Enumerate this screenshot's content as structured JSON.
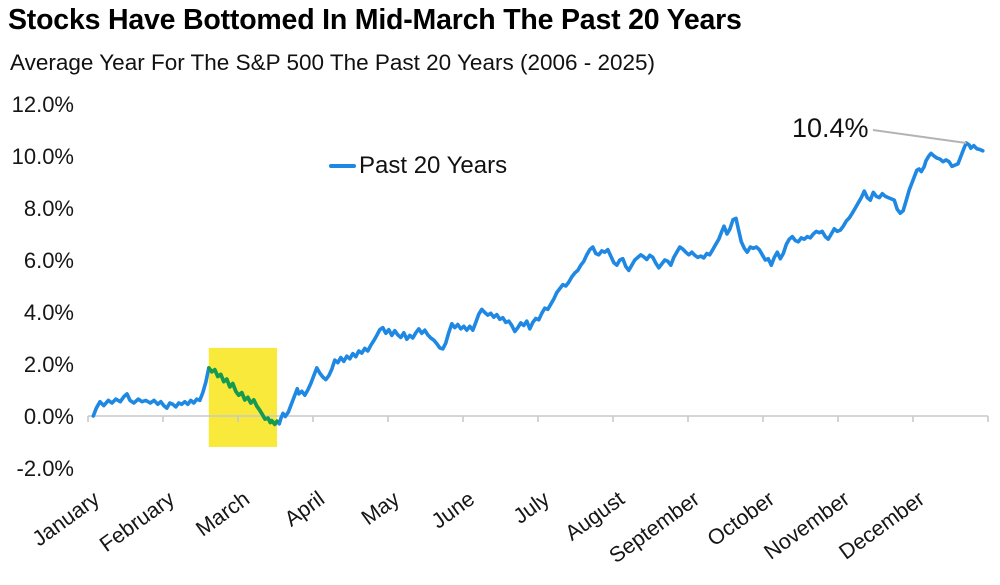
{
  "header": {
    "title": "Stocks Have Bottomed In Mid-March The Past 20 Years",
    "subtitle": "Average Year For The S&P 500 The Past 20 Years (2006 - 2025)"
  },
  "legend": {
    "label": "Past 20 Years"
  },
  "annotation": {
    "label": "10.4%",
    "value_pct": 10.4
  },
  "colors": {
    "line": "#1f88e3",
    "highlight_line": "#169a4c",
    "highlight_fill": "#f8e93b",
    "axis": "#c9c9c9",
    "leader": "#b3b3b3",
    "text": "#161616"
  },
  "chart_data": {
    "type": "line",
    "title": "Stocks Have Bottomed In Mid-March The Past 20 Years",
    "subtitle": "Average Year For The S&P 500 The Past 20 Years (2006 - 2025)",
    "series_name": "Past 20 Years",
    "x_unit": "month_fraction (0 = start of January, 12 = end of December)",
    "y_unit": "percent return",
    "categories": [
      "January",
      "February",
      "March",
      "April",
      "May",
      "June",
      "July",
      "August",
      "September",
      "October",
      "November",
      "December"
    ],
    "y_ticks": {
      "values": [
        12,
        10,
        8,
        6,
        4,
        2,
        0,
        -2
      ],
      "labels": [
        "12.0%",
        "10.0%",
        "8.0%",
        "6.0%",
        "4.0%",
        "2.0%",
        "0.0%",
        "-2.0%"
      ]
    },
    "ylim": [
      -2.0,
      12.0
    ],
    "xlim": [
      0,
      12
    ],
    "grid": "none",
    "legend_position": "upper-left-of-plot",
    "highlight_region": {
      "x0": 1.61,
      "x1": 2.52,
      "y_top": 2.62,
      "y_bottom": -1.19
    },
    "annotation_point": {
      "x": 11.71,
      "y": 10.5,
      "label": "10.4%"
    },
    "end_value_pct": 10.2,
    "points": [
      [
        0.07,
        0.0
      ],
      [
        0.11,
        0.3
      ],
      [
        0.16,
        0.55
      ],
      [
        0.21,
        0.4
      ],
      [
        0.27,
        0.6
      ],
      [
        0.32,
        0.5
      ],
      [
        0.37,
        0.65
      ],
      [
        0.43,
        0.55
      ],
      [
        0.48,
        0.75
      ],
      [
        0.52,
        0.85
      ],
      [
        0.56,
        0.6
      ],
      [
        0.61,
        0.5
      ],
      [
        0.67,
        0.65
      ],
      [
        0.72,
        0.55
      ],
      [
        0.77,
        0.6
      ],
      [
        0.83,
        0.5
      ],
      [
        0.88,
        0.6
      ],
      [
        0.93,
        0.45
      ],
      [
        0.97,
        0.55
      ],
      [
        1.01,
        0.4
      ],
      [
        1.05,
        0.3
      ],
      [
        1.09,
        0.5
      ],
      [
        1.13,
        0.45
      ],
      [
        1.17,
        0.35
      ],
      [
        1.21,
        0.5
      ],
      [
        1.25,
        0.45
      ],
      [
        1.29,
        0.55
      ],
      [
        1.33,
        0.45
      ],
      [
        1.37,
        0.6
      ],
      [
        1.41,
        0.5
      ],
      [
        1.45,
        0.65
      ],
      [
        1.49,
        0.6
      ],
      [
        1.53,
        0.9
      ],
      [
        1.57,
        1.3
      ],
      [
        1.61,
        1.85
      ],
      [
        1.65,
        1.7
      ],
      [
        1.69,
        1.78
      ],
      [
        1.73,
        1.52
      ],
      [
        1.77,
        1.6
      ],
      [
        1.81,
        1.32
      ],
      [
        1.85,
        1.42
      ],
      [
        1.89,
        1.12
      ],
      [
        1.93,
        1.25
      ],
      [
        1.97,
        0.95
      ],
      [
        2.01,
        0.8
      ],
      [
        2.05,
        0.9
      ],
      [
        2.09,
        0.62
      ],
      [
        2.13,
        0.72
      ],
      [
        2.17,
        0.5
      ],
      [
        2.21,
        0.62
      ],
      [
        2.25,
        0.38
      ],
      [
        2.29,
        0.22
      ],
      [
        2.32,
        0.08
      ],
      [
        2.36,
        -0.12
      ],
      [
        2.4,
        -0.08
      ],
      [
        2.43,
        -0.25
      ],
      [
        2.45,
        -0.18
      ],
      [
        2.49,
        -0.32
      ],
      [
        2.52,
        -0.2
      ],
      [
        2.55,
        -0.3
      ],
      [
        2.57,
        -0.1
      ],
      [
        2.6,
        0.1
      ],
      [
        2.63,
        -0.02
      ],
      [
        2.67,
        0.15
      ],
      [
        2.71,
        0.45
      ],
      [
        2.75,
        0.75
      ],
      [
        2.79,
        1.05
      ],
      [
        2.81,
        0.85
      ],
      [
        2.85,
        0.95
      ],
      [
        2.89,
        0.8
      ],
      [
        2.93,
        1.0
      ],
      [
        2.97,
        1.25
      ],
      [
        3.01,
        1.55
      ],
      [
        3.05,
        1.85
      ],
      [
        3.09,
        1.65
      ],
      [
        3.13,
        1.5
      ],
      [
        3.17,
        1.4
      ],
      [
        3.21,
        1.55
      ],
      [
        3.25,
        1.8
      ],
      [
        3.29,
        2.15
      ],
      [
        3.33,
        2.05
      ],
      [
        3.37,
        2.25
      ],
      [
        3.41,
        2.1
      ],
      [
        3.45,
        2.3
      ],
      [
        3.49,
        2.2
      ],
      [
        3.53,
        2.4
      ],
      [
        3.57,
        2.28
      ],
      [
        3.61,
        2.5
      ],
      [
        3.65,
        2.42
      ],
      [
        3.69,
        2.6
      ],
      [
        3.73,
        2.5
      ],
      [
        3.77,
        2.72
      ],
      [
        3.81,
        2.9
      ],
      [
        3.85,
        3.1
      ],
      [
        3.89,
        3.32
      ],
      [
        3.93,
        3.4
      ],
      [
        3.97,
        3.18
      ],
      [
        4.01,
        3.32
      ],
      [
        4.05,
        3.1
      ],
      [
        4.09,
        3.28
      ],
      [
        4.13,
        3.12
      ],
      [
        4.17,
        3.02
      ],
      [
        4.21,
        3.2
      ],
      [
        4.25,
        2.95
      ],
      [
        4.29,
        3.1
      ],
      [
        4.33,
        3.0
      ],
      [
        4.37,
        3.2
      ],
      [
        4.41,
        3.35
      ],
      [
        4.45,
        3.18
      ],
      [
        4.49,
        3.3
      ],
      [
        4.53,
        3.12
      ],
      [
        4.57,
        3.0
      ],
      [
        4.61,
        2.92
      ],
      [
        4.65,
        2.78
      ],
      [
        4.69,
        2.62
      ],
      [
        4.73,
        2.58
      ],
      [
        4.77,
        2.8
      ],
      [
        4.81,
        3.2
      ],
      [
        4.85,
        3.55
      ],
      [
        4.89,
        3.4
      ],
      [
        4.93,
        3.52
      ],
      [
        4.97,
        3.35
      ],
      [
        5.01,
        3.45
      ],
      [
        5.05,
        3.3
      ],
      [
        5.09,
        3.45
      ],
      [
        5.13,
        3.3
      ],
      [
        5.17,
        3.6
      ],
      [
        5.21,
        3.92
      ],
      [
        5.25,
        4.1
      ],
      [
        5.29,
        3.98
      ],
      [
        5.33,
        3.88
      ],
      [
        5.37,
        3.95
      ],
      [
        5.41,
        3.8
      ],
      [
        5.45,
        3.9
      ],
      [
        5.49,
        3.72
      ],
      [
        5.53,
        3.78
      ],
      [
        5.57,
        3.6
      ],
      [
        5.61,
        3.65
      ],
      [
        5.65,
        3.48
      ],
      [
        5.69,
        3.25
      ],
      [
        5.73,
        3.4
      ],
      [
        5.77,
        3.58
      ],
      [
        5.81,
        3.48
      ],
      [
        5.85,
        3.65
      ],
      [
        5.89,
        3.35
      ],
      [
        5.93,
        3.6
      ],
      [
        5.97,
        3.75
      ],
      [
        6.01,
        3.7
      ],
      [
        6.05,
        3.95
      ],
      [
        6.09,
        4.15
      ],
      [
        6.13,
        4.1
      ],
      [
        6.17,
        4.3
      ],
      [
        6.21,
        4.5
      ],
      [
        6.25,
        4.75
      ],
      [
        6.29,
        4.9
      ],
      [
        6.33,
        5.05
      ],
      [
        6.37,
        5.0
      ],
      [
        6.41,
        5.15
      ],
      [
        6.45,
        5.35
      ],
      [
        6.49,
        5.5
      ],
      [
        6.53,
        5.6
      ],
      [
        6.57,
        5.8
      ],
      [
        6.61,
        5.95
      ],
      [
        6.65,
        6.2
      ],
      [
        6.69,
        6.4
      ],
      [
        6.73,
        6.5
      ],
      [
        6.77,
        6.25
      ],
      [
        6.81,
        6.2
      ],
      [
        6.85,
        6.35
      ],
      [
        6.89,
        6.3
      ],
      [
        6.93,
        6.4
      ],
      [
        6.97,
        6.15
      ],
      [
        7.01,
        5.9
      ],
      [
        7.05,
        5.8
      ],
      [
        7.09,
        6.0
      ],
      [
        7.13,
        6.05
      ],
      [
        7.17,
        5.75
      ],
      [
        7.21,
        5.6
      ],
      [
        7.25,
        5.8
      ],
      [
        7.29,
        6.0
      ],
      [
        7.33,
        6.1
      ],
      [
        7.37,
        6.2
      ],
      [
        7.41,
        6.12
      ],
      [
        7.45,
        6.02
      ],
      [
        7.49,
        6.18
      ],
      [
        7.53,
        6.1
      ],
      [
        7.57,
        5.88
      ],
      [
        7.61,
        5.7
      ],
      [
        7.65,
        5.85
      ],
      [
        7.69,
        6.0
      ],
      [
        7.73,
        5.95
      ],
      [
        7.77,
        5.8
      ],
      [
        7.81,
        6.1
      ],
      [
        7.85,
        6.3
      ],
      [
        7.89,
        6.5
      ],
      [
        7.93,
        6.42
      ],
      [
        7.97,
        6.3
      ],
      [
        8.01,
        6.2
      ],
      [
        8.05,
        6.3
      ],
      [
        8.09,
        6.18
      ],
      [
        8.13,
        6.1
      ],
      [
        8.17,
        6.15
      ],
      [
        8.21,
        6.08
      ],
      [
        8.25,
        6.25
      ],
      [
        8.29,
        6.2
      ],
      [
        8.33,
        6.4
      ],
      [
        8.37,
        6.6
      ],
      [
        8.41,
        6.8
      ],
      [
        8.45,
        7.1
      ],
      [
        8.48,
        7.3
      ],
      [
        8.52,
        7.0
      ],
      [
        8.56,
        7.2
      ],
      [
        8.6,
        7.55
      ],
      [
        8.64,
        7.6
      ],
      [
        8.67,
        7.2
      ],
      [
        8.71,
        6.7
      ],
      [
        8.75,
        6.45
      ],
      [
        8.79,
        6.3
      ],
      [
        8.83,
        6.5
      ],
      [
        8.87,
        6.45
      ],
      [
        8.91,
        6.5
      ],
      [
        8.95,
        6.4
      ],
      [
        8.99,
        6.2
      ],
      [
        9.03,
        6.0
      ],
      [
        9.07,
        6.05
      ],
      [
        9.11,
        5.8
      ],
      [
        9.15,
        6.1
      ],
      [
        9.19,
        6.3
      ],
      [
        9.23,
        6.05
      ],
      [
        9.27,
        6.25
      ],
      [
        9.31,
        6.6
      ],
      [
        9.35,
        6.8
      ],
      [
        9.39,
        6.9
      ],
      [
        9.43,
        6.75
      ],
      [
        9.47,
        6.7
      ],
      [
        9.51,
        6.85
      ],
      [
        9.55,
        6.8
      ],
      [
        9.59,
        6.9
      ],
      [
        9.63,
        6.85
      ],
      [
        9.67,
        7.0
      ],
      [
        9.71,
        7.1
      ],
      [
        9.75,
        7.05
      ],
      [
        9.79,
        7.1
      ],
      [
        9.83,
        6.9
      ],
      [
        9.87,
        6.8
      ],
      [
        9.91,
        7.0
      ],
      [
        9.95,
        7.2
      ],
      [
        9.99,
        7.1
      ],
      [
        10.03,
        7.15
      ],
      [
        10.07,
        7.3
      ],
      [
        10.11,
        7.5
      ],
      [
        10.15,
        7.62
      ],
      [
        10.19,
        7.8
      ],
      [
        10.23,
        8.0
      ],
      [
        10.27,
        8.2
      ],
      [
        10.31,
        8.4
      ],
      [
        10.35,
        8.65
      ],
      [
        10.39,
        8.4
      ],
      [
        10.43,
        8.3
      ],
      [
        10.47,
        8.6
      ],
      [
        10.51,
        8.45
      ],
      [
        10.55,
        8.4
      ],
      [
        10.59,
        8.55
      ],
      [
        10.63,
        8.45
      ],
      [
        10.67,
        8.4
      ],
      [
        10.71,
        8.35
      ],
      [
        10.75,
        8.3
      ],
      [
        10.79,
        7.95
      ],
      [
        10.83,
        7.8
      ],
      [
        10.87,
        7.9
      ],
      [
        10.91,
        8.3
      ],
      [
        10.95,
        8.7
      ],
      [
        10.99,
        9.0
      ],
      [
        11.03,
        9.3
      ],
      [
        11.05,
        9.45
      ],
      [
        11.08,
        9.5
      ],
      [
        11.11,
        9.4
      ],
      [
        11.15,
        9.6
      ],
      [
        11.17,
        9.8
      ],
      [
        11.21,
        10.0
      ],
      [
        11.24,
        10.1
      ],
      [
        11.28,
        10.0
      ],
      [
        11.32,
        9.92
      ],
      [
        11.36,
        9.88
      ],
      [
        11.4,
        9.78
      ],
      [
        11.44,
        9.85
      ],
      [
        11.48,
        9.78
      ],
      [
        11.52,
        9.6
      ],
      [
        11.56,
        9.65
      ],
      [
        11.6,
        9.7
      ],
      [
        11.64,
        10.0
      ],
      [
        11.68,
        10.3
      ],
      [
        11.71,
        10.5
      ],
      [
        11.75,
        10.42
      ],
      [
        11.77,
        10.3
      ],
      [
        11.81,
        10.4
      ],
      [
        11.85,
        10.28
      ],
      [
        11.89,
        10.25
      ],
      [
        11.93,
        10.2
      ]
    ]
  }
}
